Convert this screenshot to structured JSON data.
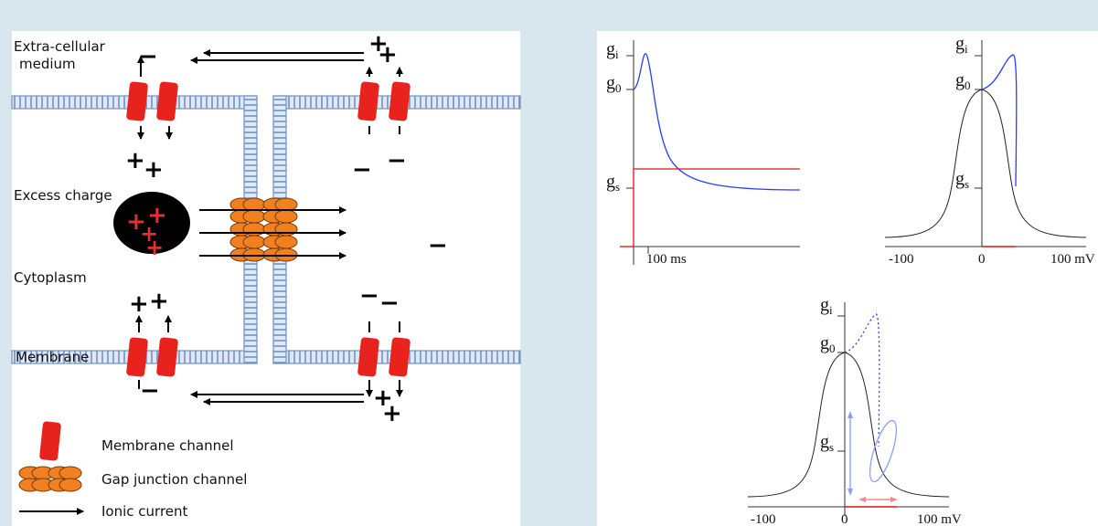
{
  "left": {
    "labels": {
      "extracellular_1": "Extra-cellular",
      "extracellular_2": "medium",
      "excess_charge": "Excess charge",
      "cytoplasm": "Cytoplasm",
      "membrane": "Membrane"
    },
    "legend": {
      "membrane_channel": "Membrane channel",
      "gap_junction_channel": "Gap junction channel",
      "ionic_current": "Ionic current"
    },
    "colors": {
      "channel": "#e8231e",
      "gap_junction": "#f08020",
      "membrane": "#7a9cc6",
      "current": "#000000"
    }
  },
  "right": {
    "plot1": {
      "gi": "g",
      "gi_sub": "i",
      "g0": "g",
      "g0_sub": "0",
      "gs": "g",
      "gs_sub": "s",
      "x_tick": "100 ms"
    },
    "plot2": {
      "gi": "g",
      "gi_sub": "i",
      "g0": "g",
      "g0_sub": "0",
      "gs": "g",
      "gs_sub": "s",
      "x_ticks": [
        "-100",
        "0",
        "100 mV"
      ]
    },
    "plot3": {
      "gi": "g",
      "gi_sub": "i",
      "g0": "g",
      "g0_sub": "0",
      "gs": "g",
      "gs_sub": "s",
      "x_ticks": [
        "-100",
        "0",
        "100 mV"
      ]
    },
    "colors": {
      "trajectory": "#2a3cff",
      "baseline": "#e01010",
      "bell": "#222222",
      "pale_blue": "#8f9cff",
      "pale_red": "#f08a8a"
    }
  }
}
